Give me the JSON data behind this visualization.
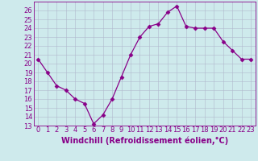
{
  "x": [
    0,
    1,
    2,
    3,
    4,
    5,
    6,
    7,
    8,
    9,
    10,
    11,
    12,
    13,
    14,
    15,
    16,
    17,
    18,
    19,
    20,
    21,
    22,
    23
  ],
  "y": [
    20.5,
    19.0,
    17.5,
    17.0,
    16.0,
    15.5,
    13.2,
    14.2,
    16.0,
    18.5,
    21.0,
    23.0,
    24.2,
    24.5,
    25.8,
    26.5,
    24.2,
    24.0,
    24.0,
    24.0,
    22.5,
    21.5,
    20.5,
    20.5
  ],
  "xlim": [
    -0.5,
    23.5
  ],
  "ylim": [
    13,
    27
  ],
  "yticks": [
    13,
    14,
    15,
    16,
    17,
    18,
    19,
    20,
    21,
    22,
    23,
    24,
    25,
    26
  ],
  "xticks": [
    0,
    1,
    2,
    3,
    4,
    5,
    6,
    7,
    8,
    9,
    10,
    11,
    12,
    13,
    14,
    15,
    16,
    17,
    18,
    19,
    20,
    21,
    22,
    23
  ],
  "xlabel": "Windchill (Refroidissement éolien,°C)",
  "line_color": "#880088",
  "marker": "D",
  "marker_size": 2.5,
  "bg_color": "#ceeaec",
  "grid_color": "#b0b8cc",
  "tick_fontsize": 6,
  "xlabel_fontsize": 7
}
